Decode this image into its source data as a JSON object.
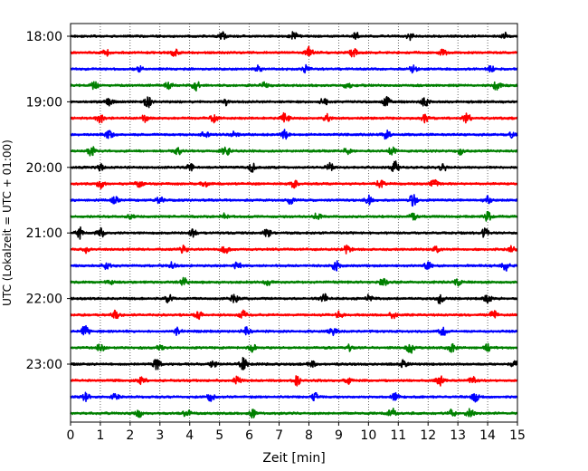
{
  "chart_data": {
    "type": "line",
    "title": "",
    "xlabel": "Zeit  [min]",
    "ylabel": "UTC (Lokalzeit = UTC + 01:00)",
    "xlim": [
      0,
      15
    ],
    "x_ticks": [
      0,
      1,
      2,
      3,
      4,
      5,
      6,
      7,
      8,
      9,
      10,
      11,
      12,
      13,
      14,
      15
    ],
    "y_tick_labels": [
      "18:00",
      "19:00",
      "20:00",
      "21:00",
      "22:00",
      "23:00"
    ],
    "grid": "vertical-dotted",
    "colors": [
      "#000000",
      "#ff0000",
      "#0000ff",
      "#008000"
    ],
    "series": [
      {
        "start": "18:00",
        "color": "#000000",
        "events": [
          [
            5.1,
            1.0
          ],
          [
            7.5,
            1.1
          ],
          [
            9.6,
            1.0
          ],
          [
            11.4,
            0.9
          ],
          [
            14.6,
            0.8
          ]
        ]
      },
      {
        "start": "18:15",
        "color": "#ff0000",
        "events": [
          [
            1.2,
            0.8
          ],
          [
            3.5,
            0.9
          ],
          [
            8.0,
            1.3
          ],
          [
            9.5,
            1.1
          ],
          [
            12.5,
            0.9
          ]
        ]
      },
      {
        "start": "18:30",
        "color": "#0000ff",
        "events": [
          [
            2.3,
            0.7
          ],
          [
            6.3,
            0.8
          ],
          [
            7.9,
            0.9
          ],
          [
            11.5,
            0.9
          ],
          [
            14.1,
            0.7
          ]
        ]
      },
      {
        "start": "18:45",
        "color": "#008000",
        "events": [
          [
            0.8,
            0.9
          ],
          [
            3.3,
            1.0
          ],
          [
            4.2,
            1.3
          ],
          [
            6.5,
            0.8
          ],
          [
            9.3,
            1.0
          ],
          [
            14.3,
            1.2
          ]
        ]
      },
      {
        "start": "19:00",
        "color": "#000000",
        "events": [
          [
            1.3,
            0.8
          ],
          [
            2.6,
            1.5
          ],
          [
            5.2,
            0.9
          ],
          [
            8.5,
            1.0
          ],
          [
            10.6,
            1.3
          ],
          [
            11.9,
            1.2
          ]
        ]
      },
      {
        "start": "19:15",
        "color": "#ff0000",
        "events": [
          [
            1.0,
            1.0
          ],
          [
            2.5,
            0.9
          ],
          [
            4.8,
            1.0
          ],
          [
            7.2,
            1.4
          ],
          [
            8.6,
            0.9
          ],
          [
            11.9,
            1.0
          ],
          [
            13.3,
            1.2
          ]
        ]
      },
      {
        "start": "19:30",
        "color": "#0000ff",
        "events": [
          [
            1.3,
            1.0
          ],
          [
            4.5,
            0.9
          ],
          [
            5.5,
            0.8
          ],
          [
            7.2,
            1.2
          ],
          [
            10.6,
            1.0
          ],
          [
            14.8,
            0.8
          ]
        ]
      },
      {
        "start": "19:45",
        "color": "#008000",
        "events": [
          [
            0.7,
            1.2
          ],
          [
            3.6,
            0.9
          ],
          [
            5.2,
            1.4
          ],
          [
            9.3,
            0.9
          ],
          [
            10.8,
            1.0
          ],
          [
            13.1,
            0.8
          ]
        ]
      },
      {
        "start": "20:00",
        "color": "#000000",
        "events": [
          [
            1.0,
            0.8
          ],
          [
            4.0,
            0.9
          ],
          [
            6.1,
            1.0
          ],
          [
            8.7,
            1.1
          ],
          [
            10.9,
            1.5
          ],
          [
            12.5,
            0.9
          ]
        ]
      },
      {
        "start": "20:15",
        "color": "#ff0000",
        "events": [
          [
            1.0,
            1.1
          ],
          [
            2.3,
            0.9
          ],
          [
            4.5,
            1.0
          ],
          [
            7.5,
            0.9
          ],
          [
            10.4,
            1.1
          ],
          [
            12.2,
            1.0
          ]
        ]
      },
      {
        "start": "20:30",
        "color": "#0000ff",
        "events": [
          [
            1.5,
            1.0
          ],
          [
            3.0,
            0.9
          ],
          [
            7.4,
            1.0
          ],
          [
            10.0,
            1.3
          ],
          [
            11.5,
            1.5
          ],
          [
            14.0,
            1.0
          ]
        ]
      },
      {
        "start": "20:45",
        "color": "#008000",
        "events": [
          [
            2.0,
            0.7
          ],
          [
            5.2,
            0.8
          ],
          [
            8.3,
            1.0
          ],
          [
            11.5,
            0.8
          ],
          [
            14.0,
            1.2
          ]
        ]
      },
      {
        "start": "21:00",
        "color": "#000000",
        "events": [
          [
            0.3,
            1.5
          ],
          [
            1.0,
            1.2
          ],
          [
            4.1,
            1.0
          ],
          [
            6.6,
            1.0
          ],
          [
            13.9,
            1.3
          ]
        ]
      },
      {
        "start": "21:15",
        "color": "#ff0000",
        "events": [
          [
            0.5,
            0.8
          ],
          [
            3.8,
            1.0
          ],
          [
            5.2,
            1.0
          ],
          [
            9.3,
            1.2
          ],
          [
            12.3,
            0.8
          ],
          [
            14.8,
            0.8
          ]
        ]
      },
      {
        "start": "21:30",
        "color": "#0000ff",
        "events": [
          [
            1.2,
            1.0
          ],
          [
            3.4,
            0.9
          ],
          [
            5.6,
            1.0
          ],
          [
            8.9,
            1.3
          ],
          [
            12.0,
            0.9
          ],
          [
            14.6,
            1.2
          ]
        ]
      },
      {
        "start": "21:45",
        "color": "#008000",
        "events": [
          [
            1.3,
            0.8
          ],
          [
            3.8,
            1.2
          ],
          [
            6.6,
            0.9
          ],
          [
            10.5,
            0.9
          ],
          [
            13.0,
            0.9
          ]
        ]
      },
      {
        "start": "22:00",
        "color": "#000000",
        "events": [
          [
            3.3,
            1.0
          ],
          [
            5.5,
            1.0
          ],
          [
            8.5,
            1.2
          ],
          [
            10.0,
            1.0
          ],
          [
            12.4,
            1.3
          ],
          [
            14.0,
            1.0
          ]
        ]
      },
      {
        "start": "22:15",
        "color": "#ff0000",
        "events": [
          [
            1.5,
            1.0
          ],
          [
            4.3,
            0.9
          ],
          [
            5.8,
            1.0
          ],
          [
            9.0,
            0.9
          ],
          [
            10.8,
            1.0
          ],
          [
            14.2,
            1.2
          ]
        ]
      },
      {
        "start": "22:30",
        "color": "#0000ff",
        "events": [
          [
            0.5,
            1.5
          ],
          [
            3.6,
            0.9
          ],
          [
            5.9,
            1.3
          ],
          [
            8.8,
            0.9
          ],
          [
            12.5,
            1.1
          ]
        ]
      },
      {
        "start": "22:45",
        "color": "#008000",
        "events": [
          [
            1.0,
            1.0
          ],
          [
            3.0,
            0.8
          ],
          [
            6.1,
            0.9
          ],
          [
            9.4,
            0.9
          ],
          [
            11.4,
            1.4
          ],
          [
            12.8,
            1.0
          ],
          [
            14.0,
            0.8
          ]
        ]
      },
      {
        "start": "23:00",
        "color": "#000000",
        "events": [
          [
            2.9,
            1.3
          ],
          [
            4.8,
            1.0
          ],
          [
            5.8,
            1.6
          ],
          [
            8.1,
            0.9
          ],
          [
            11.2,
            1.0
          ],
          [
            14.9,
            1.1
          ]
        ]
      },
      {
        "start": "23:15",
        "color": "#ff0000",
        "events": [
          [
            2.4,
            1.0
          ],
          [
            5.6,
            0.9
          ],
          [
            7.6,
            1.1
          ],
          [
            9.3,
            0.9
          ],
          [
            12.4,
            1.3
          ],
          [
            13.5,
            0.9
          ]
        ]
      },
      {
        "start": "23:30",
        "color": "#0000ff",
        "events": [
          [
            0.5,
            1.1
          ],
          [
            1.5,
            0.9
          ],
          [
            4.7,
            0.9
          ],
          [
            8.2,
            1.0
          ],
          [
            10.9,
            0.9
          ],
          [
            13.6,
            1.1
          ]
        ]
      },
      {
        "start": "23:45",
        "color": "#008000",
        "events": [
          [
            2.3,
            0.9
          ],
          [
            3.9,
            0.9
          ],
          [
            6.1,
            1.0
          ],
          [
            10.8,
            1.2
          ],
          [
            12.8,
            0.9
          ],
          [
            13.4,
            1.3
          ]
        ]
      }
    ]
  }
}
